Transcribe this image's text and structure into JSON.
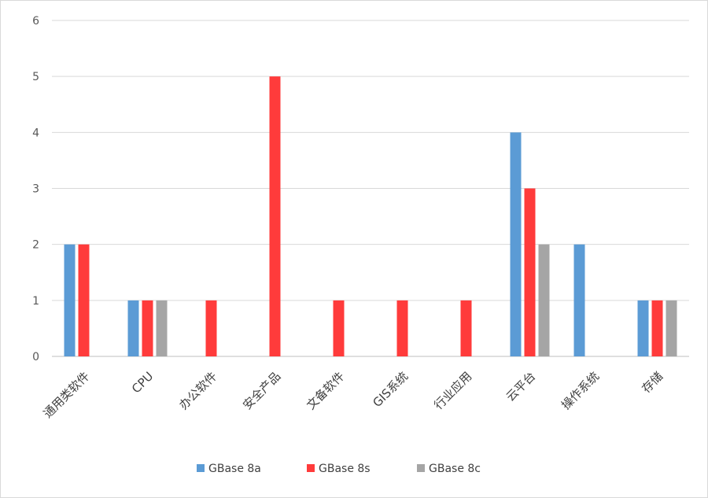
{
  "chart_data": {
    "type": "bar",
    "categories": [
      "通用类软件",
      "CPU",
      "办公软件",
      "安全产品",
      "文备软件",
      "GIS系统",
      "行业应用",
      "云平台",
      "操作系统",
      "存储"
    ],
    "series": [
      {
        "name": "GBase 8a",
        "color": "#5b9bd5",
        "values": [
          2,
          1,
          0,
          0,
          0,
          0,
          0,
          4,
          2,
          1
        ]
      },
      {
        "name": "GBase 8s",
        "color": "#ff3b3b",
        "values": [
          2,
          1,
          1,
          5,
          1,
          1,
          1,
          3,
          0,
          1
        ]
      },
      {
        "name": "GBase 8c",
        "color": "#a5a5a5",
        "values": [
          0,
          1,
          0,
          0,
          0,
          0,
          0,
          2,
          0,
          1
        ]
      }
    ],
    "ylim": [
      0,
      6
    ],
    "yticks": [
      "0",
      "1",
      "2",
      "3",
      "4",
      "5",
      "6"
    ],
    "grid": true,
    "legend_position": "bottom"
  }
}
